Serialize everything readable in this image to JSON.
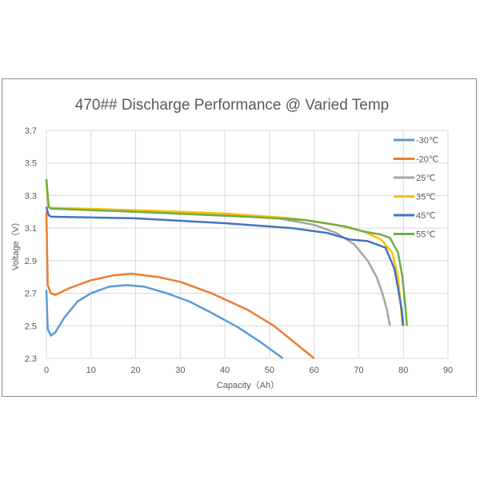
{
  "chart_data": {
    "type": "line",
    "title": "470## Discharge Performance @ Varied Temp",
    "xlabel": "Capacity（Ah）",
    "ylabel": "Voltage（V）",
    "xlim": [
      0,
      90
    ],
    "ylim": [
      2.3,
      3.7
    ],
    "xticks": [
      "0",
      "10",
      "20",
      "30",
      "40",
      "50",
      "60",
      "70",
      "80",
      "90"
    ],
    "yticks": [
      "2.3",
      "2.5",
      "2.7",
      "2.9",
      "3.1",
      "3.3",
      "3.5",
      "3.7"
    ],
    "grid": true,
    "legend_position": "right",
    "series": [
      {
        "name": "-30℃",
        "color": "#5b9bd5",
        "points": [
          [
            0,
            2.72
          ],
          [
            0.3,
            2.48
          ],
          [
            1,
            2.44
          ],
          [
            2,
            2.46
          ],
          [
            4,
            2.55
          ],
          [
            7,
            2.65
          ],
          [
            10,
            2.7
          ],
          [
            14,
            2.74
          ],
          [
            18,
            2.75
          ],
          [
            22,
            2.74
          ],
          [
            27,
            2.7
          ],
          [
            32,
            2.65
          ],
          [
            37,
            2.58
          ],
          [
            43,
            2.49
          ],
          [
            48,
            2.4
          ],
          [
            53,
            2.3
          ]
        ]
      },
      {
        "name": "-20℃",
        "color": "#ed7d31",
        "points": [
          [
            0,
            3.2
          ],
          [
            0.3,
            2.75
          ],
          [
            1,
            2.7
          ],
          [
            2,
            2.69
          ],
          [
            5,
            2.73
          ],
          [
            10,
            2.78
          ],
          [
            15,
            2.81
          ],
          [
            19,
            2.82
          ],
          [
            25,
            2.8
          ],
          [
            30,
            2.77
          ],
          [
            37,
            2.7
          ],
          [
            45,
            2.6
          ],
          [
            51,
            2.5
          ],
          [
            55.5,
            2.4
          ],
          [
            60,
            2.3
          ]
        ]
      },
      {
        "name": "25℃",
        "color": "#a5a5a5",
        "points": [
          [
            0,
            3.4
          ],
          [
            0.5,
            3.23
          ],
          [
            1,
            3.22
          ],
          [
            30,
            3.2
          ],
          [
            50,
            3.17
          ],
          [
            60,
            3.12
          ],
          [
            65,
            3.07
          ],
          [
            69,
            3.0
          ],
          [
            72,
            2.9
          ],
          [
            74,
            2.8
          ],
          [
            75.3,
            2.7
          ],
          [
            76.3,
            2.6
          ],
          [
            77,
            2.5
          ]
        ]
      },
      {
        "name": "35℃",
        "color": "#ffc000",
        "points": [
          [
            0,
            3.38
          ],
          [
            0.5,
            3.23
          ],
          [
            1,
            3.225
          ],
          [
            20,
            3.21
          ],
          [
            40,
            3.19
          ],
          [
            55,
            3.16
          ],
          [
            65,
            3.12
          ],
          [
            71,
            3.08
          ],
          [
            75,
            3.03
          ],
          [
            77.5,
            2.95
          ],
          [
            78.8,
            2.8
          ],
          [
            79.5,
            2.6
          ],
          [
            79.8,
            2.5
          ]
        ]
      },
      {
        "name": "45℃",
        "color": "#4472c4",
        "points": [
          [
            0,
            3.23
          ],
          [
            0.5,
            3.18
          ],
          [
            1,
            3.17
          ],
          [
            20,
            3.16
          ],
          [
            40,
            3.13
          ],
          [
            55,
            3.1
          ],
          [
            63,
            3.07
          ],
          [
            68,
            3.03
          ],
          [
            72,
            3.02
          ],
          [
            76,
            2.98
          ],
          [
            78,
            2.85
          ],
          [
            79,
            2.7
          ],
          [
            79.6,
            2.6
          ],
          [
            80,
            2.5
          ]
        ]
      },
      {
        "name": "55℃",
        "color": "#70ad47",
        "points": [
          [
            0,
            3.4
          ],
          [
            0.5,
            3.23
          ],
          [
            1,
            3.22
          ],
          [
            20,
            3.2
          ],
          [
            45,
            3.17
          ],
          [
            58,
            3.15
          ],
          [
            67,
            3.11
          ],
          [
            71,
            3.08
          ],
          [
            75,
            3.06
          ],
          [
            77,
            3.04
          ],
          [
            78.8,
            2.95
          ],
          [
            79.8,
            2.8
          ],
          [
            80.5,
            2.6
          ],
          [
            80.8,
            2.5
          ]
        ]
      }
    ]
  }
}
